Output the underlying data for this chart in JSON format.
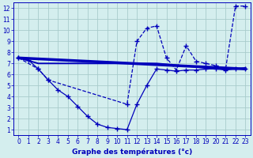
{
  "bg_color": "#d4eeee",
  "grid_color": "#a8cccc",
  "line_color": "#0000bb",
  "xlabel": "Graphe des températures (°c)",
  "xlim": [
    -0.5,
    23.5
  ],
  "ylim": [
    0.5,
    12.5
  ],
  "xticks": [
    0,
    1,
    2,
    3,
    4,
    5,
    6,
    7,
    8,
    9,
    10,
    11,
    12,
    13,
    14,
    15,
    16,
    17,
    18,
    19,
    20,
    21,
    22,
    23
  ],
  "yticks": [
    1,
    2,
    3,
    4,
    5,
    6,
    7,
    8,
    9,
    10,
    11,
    12
  ],
  "series": [
    {
      "x": [
        0,
        1,
        2,
        3,
        4,
        5,
        6,
        7,
        8,
        9,
        10,
        11,
        12,
        13,
        14,
        15,
        16,
        17,
        18,
        19,
        20,
        21,
        22,
        23
      ],
      "y": [
        7.5,
        7.3,
        6.5,
        5.5,
        4.6,
        4.0,
        3.1,
        2.2,
        1.5,
        1.2,
        1.1,
        1.0,
        3.3,
        5.0,
        6.5,
        6.4,
        6.3,
        6.4,
        6.4,
        6.5,
        6.5,
        6.4,
        6.5,
        6.5
      ],
      "marker": "+",
      "markersize": 4,
      "linewidth": 0.9,
      "linestyle": "-",
      "zorder": 3
    },
    {
      "x": [
        0,
        2,
        3,
        11,
        12,
        13,
        14,
        15,
        16,
        17,
        18,
        19,
        20,
        21,
        22,
        23
      ],
      "y": [
        7.5,
        6.5,
        5.5,
        3.3,
        9.0,
        10.2,
        10.4,
        7.5,
        6.4,
        8.6,
        7.2,
        7.0,
        6.8,
        6.5,
        12.2,
        12.2
      ],
      "marker": "+",
      "markersize": 4,
      "linewidth": 0.9,
      "linestyle": "--",
      "zorder": 4
    },
    {
      "x": [
        0,
        23
      ],
      "y": [
        7.5,
        6.5
      ],
      "marker": null,
      "markersize": 0,
      "linewidth": 2.5,
      "linestyle": "-",
      "zorder": 2
    },
    {
      "x": [
        0,
        2,
        3,
        11,
        14,
        19,
        21,
        22,
        23
      ],
      "y": [
        7.5,
        7.0,
        7.0,
        7.0,
        7.0,
        6.6,
        6.5,
        6.5,
        6.6
      ],
      "marker": null,
      "markersize": 0,
      "linewidth": 1.4,
      "linestyle": "-",
      "zorder": 2
    }
  ]
}
